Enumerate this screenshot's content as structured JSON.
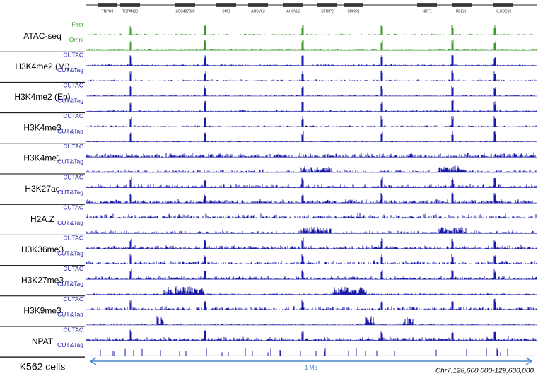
{
  "genes": [
    "TNPO3",
    "TSPAN33",
    "LOC407835",
    "SMO",
    "AHCYL2",
    "AHCYL2",
    "STRIP2",
    "SMKR1",
    "NRF1",
    "UBE2H",
    "KLHDC10"
  ],
  "tracks": [
    {
      "name": "ATAC-seq",
      "subtracks": [
        "Fast",
        "Omni"
      ]
    },
    {
      "name": "H3K4me2 (Mi)",
      "subtracks": [
        "CUTAC",
        "CUT&Tag"
      ]
    },
    {
      "name": "H3K4me2 (Ep)",
      "subtracks": [
        "CUTAC",
        "CUT&Tag"
      ]
    },
    {
      "name": "H3K4me3",
      "subtracks": [
        "CUTAC",
        "CUT&Tag"
      ]
    },
    {
      "name": "H3K4me1",
      "subtracks": [
        "CUTAC",
        "CUT&Tag"
      ]
    },
    {
      "name": "H3K27ac",
      "subtracks": [
        "CUTAC",
        "CUT&Tag"
      ]
    },
    {
      "name": "H2A.Z",
      "subtracks": [
        "CUTAC",
        "CUT&Tag"
      ]
    },
    {
      "name": "H3K36me3",
      "subtracks": [
        "CUTAC",
        "CUT&Tag"
      ]
    },
    {
      "name": "H3K27me3",
      "subtracks": [
        "CUTAC",
        "CUT&Tag"
      ]
    },
    {
      "name": "H3K9me3",
      "subtracks": [
        "CUTAC",
        "CUT&Tag"
      ]
    },
    {
      "name": "NPAT",
      "subtracks": [
        "CUTAC",
        "CUT&Tag"
      ]
    }
  ],
  "footer": {
    "cell_line": "K562 cells",
    "scale": "1 Mb",
    "region": "Chr7:128,600,000-129,600,000"
  }
}
